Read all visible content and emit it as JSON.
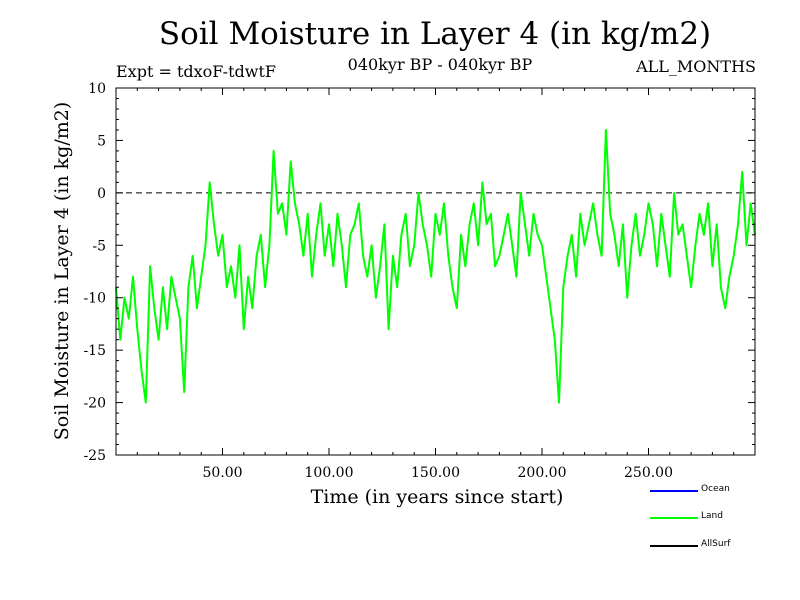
{
  "chart_data": {
    "type": "line",
    "title": "Soil Moisture in Layer 4 (in kg/m2)",
    "subtitle": "040kyr BP - 040kyr BP",
    "expt_label": "Expt = tdxoF-tdwtF",
    "period_label": "ALL_MONTHS",
    "xlabel": "Time (in years since start)",
    "ylabel": "Soil Moisture in Layer 4 (in kg/m2)",
    "xlim": [
      0,
      300
    ],
    "ylim": [
      -25,
      10
    ],
    "x_ticks": [
      50,
      100,
      150,
      200,
      250
    ],
    "x_tick_labels": [
      "50.00",
      "100.00",
      "150.00",
      "200.00",
      "250.00"
    ],
    "y_ticks": [
      -25,
      -20,
      -15,
      -10,
      -5,
      0,
      5,
      10
    ],
    "y_tick_labels": [
      "-25",
      "-20",
      "-15",
      "-10",
      "-5",
      "0",
      "5",
      "10"
    ],
    "reference_line": {
      "y": 0,
      "style": "dashed"
    },
    "grid": false,
    "legend_position": "bottom-right",
    "legend": [
      {
        "name": "Ocean",
        "color": "#0000ff"
      },
      {
        "name": "Land",
        "color": "#00ff00"
      },
      {
        "name": "AllSurf",
        "color": "#000000"
      }
    ],
    "series": [
      {
        "name": "Land",
        "color": "#00ff00",
        "x": [
          0,
          2,
          4,
          6,
          8,
          10,
          12,
          14,
          16,
          18,
          20,
          22,
          24,
          26,
          28,
          30,
          32,
          34,
          36,
          38,
          40,
          42,
          44,
          46,
          48,
          50,
          52,
          54,
          56,
          58,
          60,
          62,
          64,
          66,
          68,
          70,
          72,
          74,
          76,
          78,
          80,
          82,
          84,
          86,
          88,
          90,
          92,
          94,
          96,
          98,
          100,
          102,
          104,
          106,
          108,
          110,
          112,
          114,
          116,
          118,
          120,
          122,
          124,
          126,
          128,
          130,
          132,
          134,
          136,
          138,
          140,
          142,
          144,
          146,
          148,
          150,
          152,
          154,
          156,
          158,
          160,
          162,
          164,
          166,
          168,
          170,
          172,
          174,
          176,
          178,
          180,
          182,
          184,
          186,
          188,
          190,
          192,
          194,
          196,
          198,
          200,
          202,
          204,
          206,
          208,
          210,
          212,
          214,
          216,
          218,
          220,
          222,
          224,
          226,
          228,
          230,
          232,
          234,
          236,
          238,
          240,
          242,
          244,
          246,
          248,
          250,
          252,
          254,
          256,
          258,
          260,
          262,
          264,
          266,
          268,
          270,
          272,
          274,
          276,
          278,
          280,
          282,
          284,
          286,
          288,
          290,
          292,
          294,
          296,
          298,
          300
        ],
        "values": [
          -9,
          -14,
          -10,
          -12,
          -8,
          -13,
          -17,
          -20,
          -7,
          -11,
          -14,
          -9,
          -13,
          -8,
          -10,
          -12,
          -19,
          -9,
          -6,
          -11,
          -8,
          -5,
          1,
          -3,
          -6,
          -4,
          -9,
          -7,
          -10,
          -5,
          -13,
          -8,
          -11,
          -6,
          -4,
          -9,
          -5,
          4,
          -2,
          -1,
          -4,
          3,
          -1,
          -3,
          -6,
          -2,
          -8,
          -4,
          -1,
          -6,
          -3,
          -7,
          -2,
          -5,
          -9,
          -4,
          -3,
          -1,
          -6,
          -8,
          -5,
          -10,
          -7,
          -3,
          -13,
          -6,
          -9,
          -4,
          -2,
          -7,
          -5,
          0,
          -3,
          -5,
          -8,
          -2,
          -4,
          -1,
          -6,
          -9,
          -11,
          -4,
          -7,
          -3,
          -1,
          -5,
          1,
          -3,
          -2,
          -7,
          -6,
          -4,
          -2,
          -5,
          -8,
          0,
          -3,
          -6,
          -2,
          -4,
          -5,
          -8,
          -11,
          -14,
          -20,
          -9,
          -6,
          -4,
          -8,
          -2,
          -5,
          -3,
          -1,
          -4,
          -6,
          6,
          -2,
          -4,
          -7,
          -3,
          -10,
          -5,
          -2,
          -6,
          -4,
          -1,
          -3,
          -7,
          -2,
          -5,
          -8,
          0,
          -4,
          -3,
          -6,
          -9,
          -5,
          -2,
          -4,
          -1,
          -7,
          -3,
          -9,
          -11,
          -8,
          -6,
          -3,
          2,
          -5,
          -1,
          -4
        ]
      }
    ]
  }
}
